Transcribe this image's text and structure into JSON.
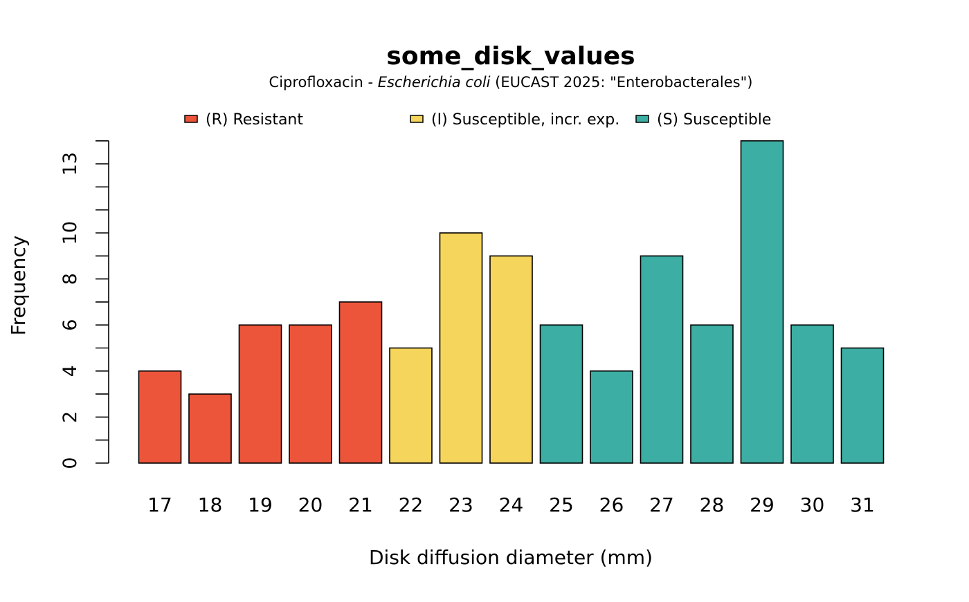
{
  "chart_data": {
    "type": "bar",
    "title": "some_disk_values",
    "subtitle": {
      "part1": "Ciprofloxacin - ",
      "organism": "Escherichia coli",
      "part2": " (EUCAST 2025: \"Enterobacterales\")"
    },
    "xlabel": "Disk diffusion diameter (mm)",
    "ylabel": "Frequency",
    "ylim": [
      0,
      14
    ],
    "yticks_labeled": [
      0,
      2,
      4,
      6,
      8,
      10,
      13
    ],
    "yticks_minor": [
      1,
      3,
      5,
      7,
      9,
      11,
      12,
      14
    ],
    "categories": [
      "17",
      "18",
      "19",
      "20",
      "21",
      "22",
      "23",
      "24",
      "25",
      "26",
      "27",
      "28",
      "29",
      "30",
      "31"
    ],
    "values": [
      4,
      3,
      6,
      6,
      7,
      5,
      10,
      9,
      6,
      4,
      9,
      6,
      14,
      6,
      5
    ],
    "groups": [
      "R",
      "R",
      "R",
      "R",
      "R",
      "I",
      "I",
      "I",
      "S",
      "S",
      "S",
      "S",
      "S",
      "S",
      "S"
    ],
    "legend": [
      {
        "key": "R",
        "label": "(R) Resistant",
        "color": "#ED553B"
      },
      {
        "key": "I",
        "label": "(I) Susceptible, incr. exp.",
        "color": "#F6D55C"
      },
      {
        "key": "S",
        "label": "(S) Susceptible",
        "color": "#3CAEA3"
      }
    ],
    "legend_position": "top"
  }
}
